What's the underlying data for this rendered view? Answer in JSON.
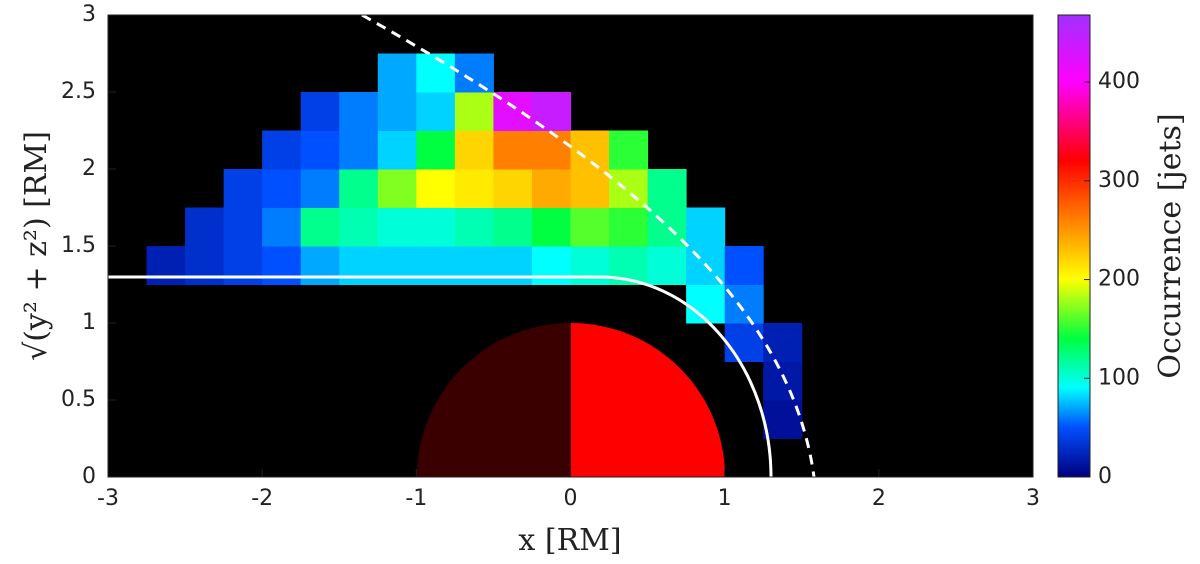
{
  "chart_data": {
    "type": "heatmap",
    "x_label": "x   [RM]",
    "y_label": "√(y² + z²)   [RM]",
    "colorbar_label": "Occurrence [jets]",
    "xlim": [
      -3,
      3
    ],
    "ylim": [
      0,
      3
    ],
    "clim": [
      0,
      468
    ],
    "xticks": [
      -3,
      -2,
      -1,
      0,
      1,
      2,
      3
    ],
    "yticks": [
      0,
      0.5,
      1,
      1.5,
      2,
      2.5,
      3
    ],
    "cticks": [
      0,
      100,
      200,
      300,
      400
    ],
    "xbins": [
      -3,
      -2.75,
      -2.5,
      -2.25,
      -2,
      -1.75,
      -1.5,
      -1.25,
      -1,
      -0.75,
      -0.5,
      -0.25,
      0,
      0.25,
      0.5,
      0.75,
      1,
      1.25,
      1.5,
      1.75,
      2,
      2.25,
      2.5,
      2.75,
      3
    ],
    "ybins": [
      0,
      0.25,
      0.5,
      0.75,
      1,
      1.25,
      1.5,
      1.75,
      2,
      2.25,
      2.5,
      2.75,
      3
    ],
    "colormap": [
      {
        "value": 0,
        "color": "#000080"
      },
      {
        "value": 50,
        "color": "#0050ff"
      },
      {
        "value": 90,
        "color": "#00ffff"
      },
      {
        "value": 140,
        "color": "#00ff40"
      },
      {
        "value": 200,
        "color": "#ffff00"
      },
      {
        "value": 260,
        "color": "#ff8000"
      },
      {
        "value": 320,
        "color": "#ff0000"
      },
      {
        "value": 400,
        "color": "#ff00ff"
      },
      {
        "value": 468,
        "color": "#a030ff"
      }
    ],
    "z": [
      [
        null,
        null,
        null,
        null,
        null,
        null,
        null,
        null,
        null,
        null,
        null,
        null,
        null,
        null,
        null,
        null,
        null,
        null,
        null,
        null,
        null,
        null,
        null,
        null
      ],
      [
        null,
        null,
        null,
        null,
        null,
        null,
        null,
        null,
        null,
        null,
        null,
        null,
        null,
        null,
        null,
        null,
        null,
        10,
        null,
        null,
        null,
        null,
        null,
        null
      ],
      [
        null,
        null,
        null,
        null,
        null,
        null,
        null,
        null,
        null,
        null,
        null,
        null,
        null,
        null,
        null,
        null,
        null,
        15,
        null,
        null,
        null,
        null,
        null,
        null
      ],
      [
        null,
        null,
        null,
        null,
        null,
        null,
        null,
        null,
        null,
        null,
        null,
        null,
        null,
        null,
        null,
        null,
        40,
        20,
        null,
        null,
        null,
        null,
        null,
        null
      ],
      [
        null,
        null,
        null,
        null,
        null,
        null,
        null,
        null,
        null,
        null,
        null,
        null,
        null,
        null,
        null,
        90,
        60,
        null,
        null,
        null,
        null,
        null,
        null,
        null
      ],
      [
        null,
        20,
        30,
        40,
        50,
        70,
        80,
        80,
        80,
        80,
        80,
        90,
        100,
        110,
        100,
        80,
        50,
        null,
        null,
        null,
        null,
        null,
        null,
        null
      ],
      [
        null,
        null,
        30,
        40,
        60,
        120,
        110,
        100,
        100,
        110,
        120,
        140,
        160,
        150,
        120,
        80,
        null,
        null,
        null,
        null,
        null,
        null,
        null,
        null
      ],
      [
        null,
        null,
        null,
        40,
        50,
        60,
        120,
        170,
        200,
        210,
        220,
        240,
        230,
        180,
        120,
        null,
        null,
        null,
        null,
        null,
        null,
        null,
        null,
        null
      ],
      [
        null,
        null,
        null,
        null,
        40,
        50,
        60,
        80,
        140,
        220,
        260,
        260,
        230,
        150,
        null,
        null,
        null,
        null,
        null,
        null,
        null,
        null,
        null,
        null
      ],
      [
        null,
        null,
        null,
        null,
        null,
        40,
        60,
        70,
        80,
        180,
        420,
        440,
        null,
        null,
        null,
        null,
        null,
        null,
        null,
        null,
        null,
        null,
        null,
        null
      ],
      [
        null,
        null,
        null,
        null,
        null,
        null,
        null,
        70,
        90,
        60,
        null,
        null,
        null,
        null,
        null,
        null,
        null,
        null,
        null,
        null,
        null,
        null,
        null,
        null
      ],
      [
        null,
        null,
        null,
        null,
        null,
        null,
        null,
        null,
        null,
        null,
        null,
        null,
        null,
        null,
        null,
        null,
        null,
        null,
        null,
        null,
        null,
        null,
        null,
        null
      ]
    ]
  }
}
